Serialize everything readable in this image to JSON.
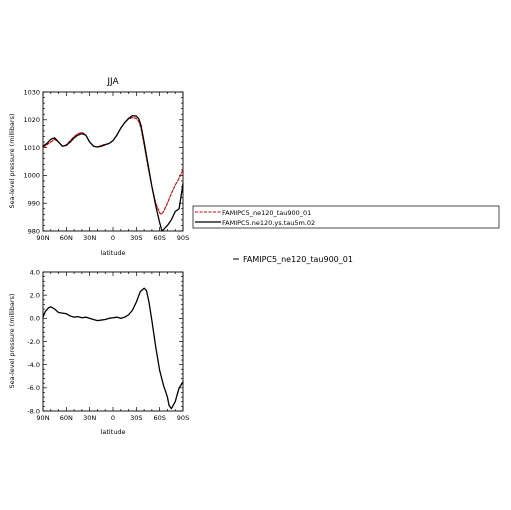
{
  "chart_data": [
    {
      "type": "line",
      "title": "JJA",
      "xlabel": "latitude",
      "ylabel": "Sea-level pressure (millibars)",
      "xlim": [
        -90,
        90
      ],
      "ylim": [
        980,
        1030
      ],
      "x_ticks": [
        -90,
        -60,
        -30,
        0,
        30,
        60,
        90
      ],
      "x_tick_labels": [
        "90N",
        "60N",
        "30N",
        "0",
        "30S",
        "60S",
        "90S"
      ],
      "y_ticks": [
        980,
        990,
        1000,
        1010,
        1020,
        1030
      ],
      "y_tick_labels": [
        "980",
        "990",
        "1000",
        "1010",
        "1020",
        "1030"
      ],
      "legend_position": "right, outside plot",
      "series": [
        {
          "name": "FAMIPC5_ne120_tau900_01",
          "color": "#cc0000",
          "style": "dashed",
          "x": [
            -90,
            -85,
            -80,
            -75,
            -70,
            -65,
            -60,
            -55,
            -50,
            -45,
            -40,
            -35,
            -30,
            -25,
            -20,
            -15,
            -10,
            -5,
            0,
            5,
            10,
            15,
            20,
            25,
            30,
            33,
            36,
            40,
            45,
            50,
            55,
            60,
            62,
            65,
            70,
            75,
            80,
            85,
            90
          ],
          "y": [
            1010,
            1011,
            1012,
            1013,
            1012,
            1010.5,
            1011,
            1012.5,
            1014,
            1015,
            1015.5,
            1014.5,
            1012,
            1010.5,
            1010.2,
            1010.8,
            1011.2,
            1011.5,
            1012.5,
            1014.5,
            1017,
            1019,
            1020.3,
            1020.8,
            1020.5,
            1019.5,
            1017,
            1011,
            1003,
            996,
            990,
            986.5,
            986,
            987,
            990,
            993.5,
            996.5,
            999,
            1002
          ]
        },
        {
          "name": "FAMIPC5.ne120.ys.tau5m.02",
          "color": "#000000",
          "style": "solid",
          "x": [
            -90,
            -85,
            -80,
            -75,
            -70,
            -65,
            -60,
            -55,
            -50,
            -45,
            -40,
            -35,
            -30,
            -25,
            -20,
            -15,
            -10,
            -5,
            0,
            5,
            10,
            15,
            20,
            25,
            30,
            33,
            36,
            40,
            45,
            50,
            55,
            60,
            63,
            65,
            70,
            75,
            80,
            85,
            90
          ],
          "y": [
            1010.5,
            1011.5,
            1013,
            1013.5,
            1012,
            1010.5,
            1010.8,
            1012,
            1013.5,
            1014.5,
            1015,
            1014.5,
            1012,
            1010.5,
            1010.2,
            1010.5,
            1011,
            1011.5,
            1012.5,
            1014.5,
            1017,
            1019,
            1020.5,
            1021.5,
            1021.3,
            1020.5,
            1018,
            1012,
            1004,
            996,
            989,
            983,
            980,
            980.5,
            982,
            984,
            987,
            988,
            997
          ]
        }
      ]
    },
    {
      "type": "line",
      "title": "",
      "xlabel": "latitude",
      "ylabel": "Sea-level pressure (millibars)",
      "xlim": [
        -90,
        90
      ],
      "ylim": [
        -8,
        4
      ],
      "x_ticks": [
        -90,
        -60,
        -30,
        0,
        30,
        60,
        90
      ],
      "x_tick_labels": [
        "90N",
        "60N",
        "30N",
        "0",
        "30S",
        "60S",
        "90S"
      ],
      "y_ticks": [
        -8,
        -6,
        -4,
        -2,
        0,
        2,
        4
      ],
      "y_tick_labels": [
        "-8.0",
        "-6.0",
        "-4.0",
        "-2.0",
        "0.0",
        "2.0",
        "4.0"
      ],
      "legend_label": "FAMIPC5_ne120_tau900_01",
      "series": [
        {
          "name": "FAMIPC5_ne120_tau900_01",
          "color": "#000000",
          "style": "solid",
          "x": [
            -90,
            -87,
            -83,
            -80,
            -75,
            -70,
            -65,
            -60,
            -55,
            -50,
            -45,
            -40,
            -35,
            -30,
            -25,
            -20,
            -15,
            -10,
            -5,
            0,
            5,
            10,
            15,
            20,
            25,
            30,
            35,
            40,
            43,
            46,
            50,
            55,
            60,
            65,
            70,
            72,
            75,
            80,
            85,
            90
          ],
          "y": [
            0.1,
            0.6,
            0.9,
            1.0,
            0.8,
            0.5,
            0.45,
            0.4,
            0.2,
            0.1,
            0.15,
            0.05,
            0.1,
            0.0,
            -0.1,
            -0.2,
            -0.15,
            -0.1,
            0.0,
            0.05,
            0.1,
            0.0,
            0.1,
            0.3,
            0.7,
            1.4,
            2.3,
            2.6,
            2.4,
            1.5,
            -0.2,
            -2.5,
            -4.5,
            -5.8,
            -6.8,
            -7.5,
            -7.8,
            -7.2,
            -6.0,
            -5.5
          ]
        }
      ]
    }
  ]
}
